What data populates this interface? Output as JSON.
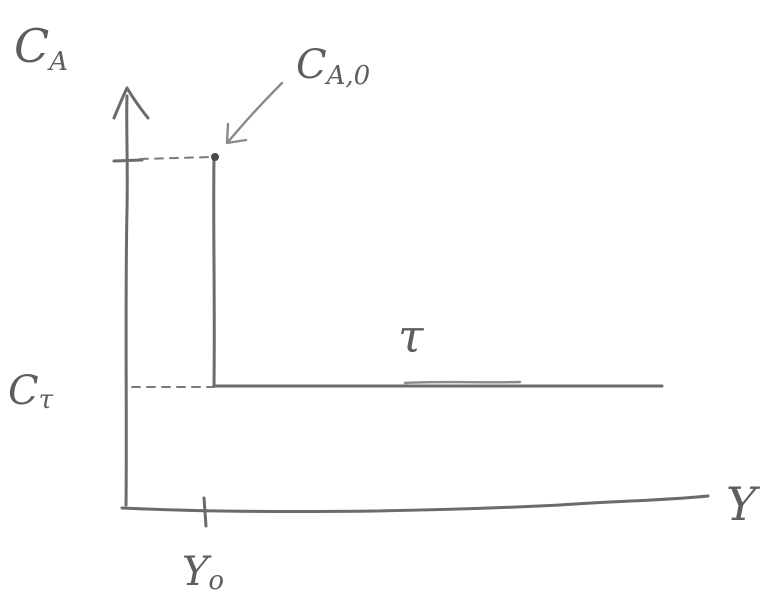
{
  "labels": {
    "y_axis": "C",
    "y_axis_sub": "A",
    "x_axis": "Y",
    "point": "C",
    "point_sub": "A,0",
    "tau_level": "C",
    "tau_level_sub": "τ",
    "x_tick": "Y",
    "x_tick_sub": "o",
    "curve": "τ"
  },
  "colors": {
    "ink": "#6b6b6b",
    "paper": "#ffffff"
  },
  "icons": {
    "arrowhead": "chevron-up-icon",
    "pointer": "arrow-down-left-icon"
  }
}
